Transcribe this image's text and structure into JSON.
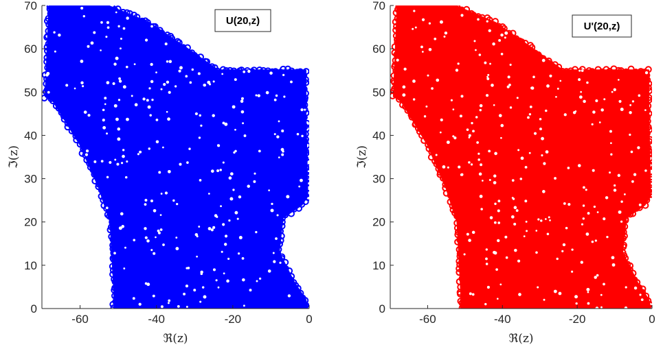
{
  "chart_data": [
    {
      "type": "scatter",
      "legend": "U(20,z)",
      "marker_color": "#0000ff",
      "marker": "circle-open",
      "xlabel": "ℜ(z)",
      "ylabel": "ℑ(z)",
      "xlim": [
        -70,
        0
      ],
      "ylim": [
        0,
        70
      ],
      "xticks": [
        -60,
        -40,
        -20,
        0
      ],
      "yticks": [
        0,
        10,
        20,
        30,
        40,
        50,
        60,
        70
      ],
      "grid": false,
      "legend_position": "top-right",
      "region_outline": [
        [
          -69,
          49
        ],
        [
          -68,
          70
        ],
        [
          -53,
          70
        ],
        [
          -42,
          66
        ],
        [
          -32,
          60
        ],
        [
          -24,
          55
        ],
        [
          -1,
          55
        ],
        [
          -1,
          45
        ],
        [
          -0.5,
          26
        ],
        [
          -2,
          24
        ],
        [
          -7,
          21
        ],
        [
          -8,
          13
        ],
        [
          -4,
          6
        ],
        [
          -1,
          2
        ],
        [
          -0.5,
          0
        ],
        [
          -51,
          0
        ],
        [
          -51,
          4
        ],
        [
          -52,
          20
        ],
        [
          -55,
          28
        ],
        [
          -60,
          38
        ],
        [
          -67,
          48
        ]
      ]
    },
    {
      "type": "scatter",
      "legend": "U'(20,z)",
      "marker_color": "#ff0000",
      "marker": "circle-open",
      "xlabel": "ℜ(z)",
      "ylabel": "ℑ(z)",
      "xlim": [
        -70,
        0
      ],
      "ylim": [
        0,
        70
      ],
      "xticks": [
        -60,
        -40,
        -20,
        0
      ],
      "yticks": [
        0,
        10,
        20,
        30,
        40,
        50,
        60,
        70
      ],
      "grid": false,
      "legend_position": "top-right",
      "region_outline": [
        [
          -69,
          49
        ],
        [
          -68,
          70
        ],
        [
          -53,
          70
        ],
        [
          -42,
          66
        ],
        [
          -32,
          60
        ],
        [
          -24,
          55
        ],
        [
          -1,
          55
        ],
        [
          -1,
          45
        ],
        [
          -0.5,
          26
        ],
        [
          -2,
          24
        ],
        [
          -7,
          21
        ],
        [
          -8,
          13
        ],
        [
          -4,
          6
        ],
        [
          -1,
          2
        ],
        [
          -0.5,
          0
        ],
        [
          -51,
          0
        ],
        [
          -51,
          4
        ],
        [
          -52,
          20
        ],
        [
          -55,
          28
        ],
        [
          -60,
          38
        ],
        [
          -67,
          48
        ]
      ]
    }
  ]
}
